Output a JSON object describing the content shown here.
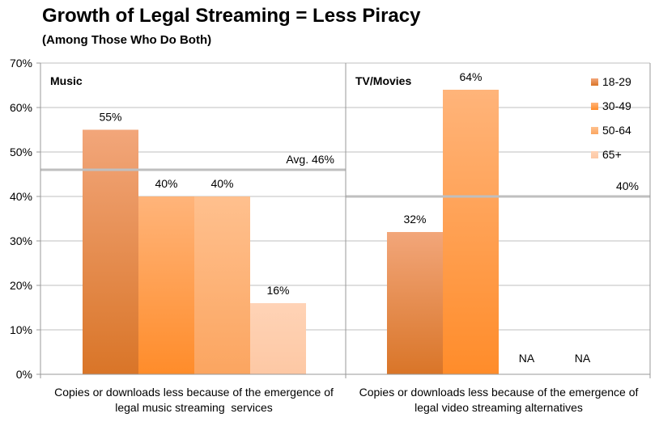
{
  "chart_data": {
    "type": "bar",
    "title": "Growth of Legal Streaming = Less Piracy",
    "subtitle": "(Among Those Who Do Both)",
    "xlabel": "",
    "ylabel": "",
    "ylim": [
      0,
      70
    ],
    "yticks": [
      "0%",
      "10%",
      "20%",
      "30%",
      "40%",
      "50%",
      "60%",
      "70%"
    ],
    "grid": true,
    "legend_position": "top-right",
    "series": [
      {
        "name": "18-29",
        "color_top": "#f2a67a",
        "color_bottom": "#d97528",
        "values": [
          55,
          32
        ]
      },
      {
        "name": "30-49",
        "color_top": "#ffb47a",
        "color_bottom": "#ff8c2a",
        "values": [
          40,
          64
        ]
      },
      {
        "name": "50-64",
        "color_top": "#ffc08e",
        "color_bottom": "#fba560",
        "values": [
          40,
          null
        ]
      },
      {
        "name": "65+",
        "color_top": "#ffd3b6",
        "color_bottom": "#fdc8a4",
        "values": [
          16,
          null
        ]
      }
    ],
    "panels": [
      {
        "name": "Music",
        "category_lines": [
          "Copies or downloads less because of the emergence of",
          "legal music streaming  services"
        ],
        "value_labels": [
          "55%",
          "40%",
          "40%",
          "16%"
        ],
        "reference": {
          "value": 46,
          "label": "Avg. 46%"
        }
      },
      {
        "name": "TV/Movies",
        "category_lines": [
          "Copies or downloads less because of the emergence of",
          "legal video streaming alternatives"
        ],
        "value_labels": [
          "32%",
          "64%",
          "NA",
          "NA"
        ],
        "reference": {
          "value": 40,
          "label": "40%"
        }
      }
    ]
  }
}
